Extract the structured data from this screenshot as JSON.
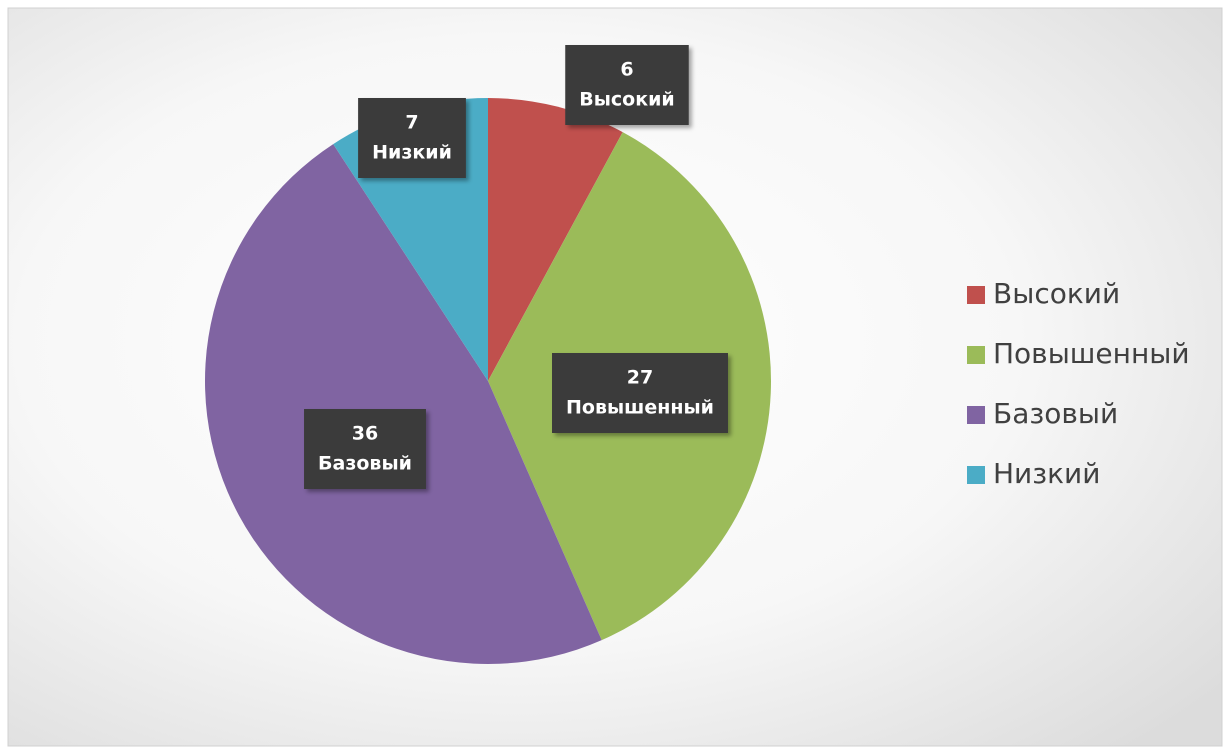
{
  "chart_data": {
    "type": "pie",
    "categories": [
      "Высокий",
      "Повышенный",
      "Базовый",
      "Низкий"
    ],
    "values": [
      6,
      27,
      36,
      7
    ],
    "colors": [
      "#c0504d",
      "#9bbb59",
      "#8064a2",
      "#4bacc6"
    ],
    "legend": "right"
  }
}
